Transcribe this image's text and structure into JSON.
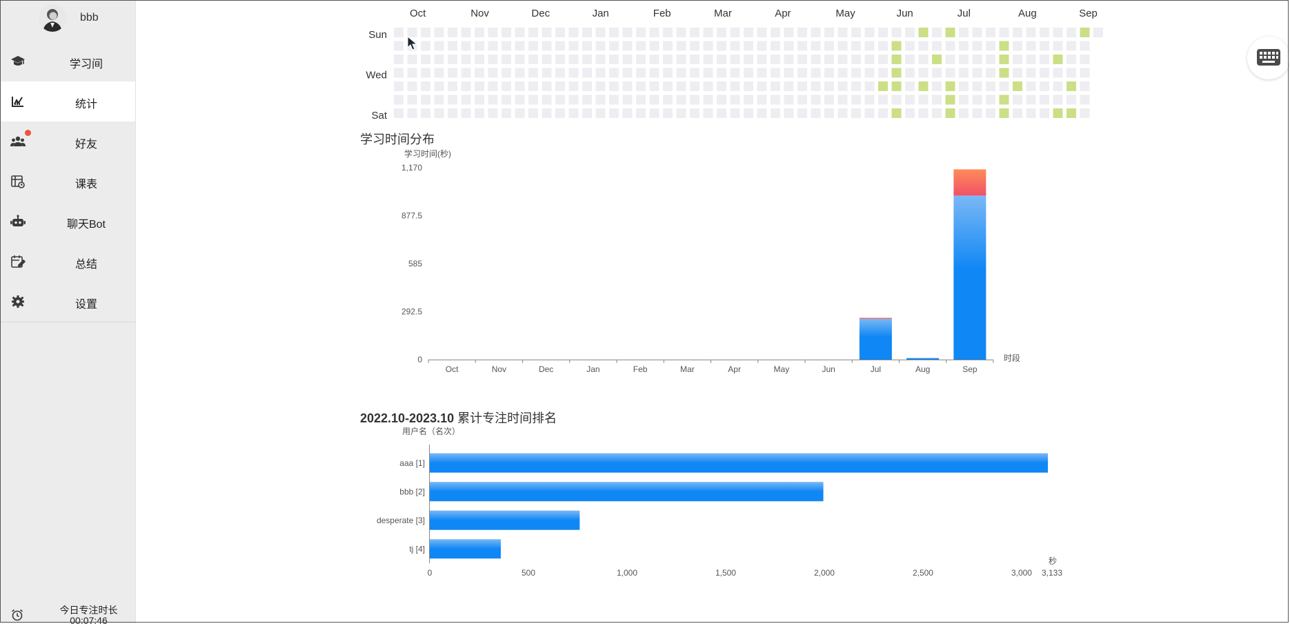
{
  "user": {
    "name": "bbb"
  },
  "nav": [
    {
      "key": "study-room",
      "icon": "graduation-cap-icon",
      "label": "学习间",
      "active": false,
      "badge": false
    },
    {
      "key": "statistics",
      "icon": "chart-icon",
      "label": "统计",
      "active": true,
      "badge": false
    },
    {
      "key": "friends",
      "icon": "users-icon",
      "label": "好友",
      "active": false,
      "badge": true
    },
    {
      "key": "timetable",
      "icon": "timetable-icon",
      "label": "课表",
      "active": false,
      "badge": false
    },
    {
      "key": "chat-bot",
      "icon": "robot-icon",
      "label": "聊天Bot",
      "active": false,
      "badge": false
    },
    {
      "key": "summary",
      "icon": "calendar-edit-icon",
      "label": "总结",
      "active": false,
      "badge": false
    },
    {
      "key": "settings",
      "icon": "gear-icon",
      "label": "设置",
      "active": false,
      "badge": false
    }
  ],
  "today": {
    "label": "今日专注时长",
    "time": "00:07:46",
    "icon": "alarm-clock-icon"
  },
  "keyboard": {
    "icon": "keyboard-icon"
  },
  "colors": {
    "accent": "#0f87f5",
    "accent_light": "#7ab8f5",
    "red_top": "#ff8b5a",
    "red_bottom": "#f05266",
    "heat_active": "#cbdf86",
    "heat_empty": "#eeeef2"
  },
  "heatmap": {
    "months": [
      "Oct",
      "Nov",
      "Dec",
      "Jan",
      "Feb",
      "Mar",
      "Apr",
      "May",
      "Jun",
      "Jul",
      "Aug",
      "Sep"
    ],
    "day_labels": [
      "Sun",
      "Wed",
      "Sat"
    ],
    "weeks": 53,
    "active_cells": [
      {
        "w": 37,
        "d": 1
      },
      {
        "w": 37,
        "d": 2
      },
      {
        "w": 37,
        "d": 3
      },
      {
        "w": 37,
        "d": 4
      },
      {
        "w": 37,
        "d": 6
      },
      {
        "w": 36,
        "d": 4
      },
      {
        "w": 41,
        "d": 0
      },
      {
        "w": 41,
        "d": 4
      },
      {
        "w": 41,
        "d": 5
      },
      {
        "w": 41,
        "d": 6
      },
      {
        "w": 40,
        "d": 2
      },
      {
        "w": 39,
        "d": 0
      },
      {
        "w": 39,
        "d": 4
      },
      {
        "w": 45,
        "d": 1
      },
      {
        "w": 45,
        "d": 2
      },
      {
        "w": 45,
        "d": 3
      },
      {
        "w": 45,
        "d": 5
      },
      {
        "w": 45,
        "d": 6
      },
      {
        "w": 46,
        "d": 4
      },
      {
        "w": 49,
        "d": 2
      },
      {
        "w": 49,
        "d": 6
      },
      {
        "w": 50,
        "d": 4
      },
      {
        "w": 50,
        "d": 6
      },
      {
        "w": 51,
        "d": 0
      }
    ]
  },
  "study_time_chart": {
    "title": "学习时间分布",
    "chart_data": {
      "type": "bar",
      "title": "学习时间分布",
      "ylabel": "学习时间(秒)",
      "xlabel": "时段",
      "categories": [
        "Oct",
        "Nov",
        "Dec",
        "Jan",
        "Feb",
        "Mar",
        "Apr",
        "May",
        "Jun",
        "Jul",
        "Aug",
        "Sep"
      ],
      "y_ticks": [
        "1,170",
        "877.5",
        "585",
        "292.5",
        "0"
      ],
      "ylim": [
        0,
        1170
      ],
      "stacked": true,
      "series": [
        {
          "values": [
            0,
            0,
            0,
            0,
            0,
            0,
            0,
            0,
            0,
            250,
            10,
            1000
          ]
        },
        {
          "values": [
            0,
            0,
            0,
            0,
            0,
            0,
            0,
            0,
            0,
            5,
            0,
            160
          ]
        }
      ],
      "grid": false
    }
  },
  "ranking_chart": {
    "title_bold": "2022.10-2023.10",
    "title_rest": " 累计专注时间排名",
    "chart_data": {
      "type": "bar",
      "orientation": "horizontal",
      "ylabel": "用户名（名次）",
      "xlabel": "秒",
      "categories": [
        "aaa [1]",
        "bbb [2]",
        "desperate [3]",
        "tj [4]"
      ],
      "values": [
        3133,
        1995,
        760,
        360
      ],
      "x_ticks": [
        "0",
        "500",
        "1,000",
        "1,500",
        "2,000",
        "2,500",
        "3,000",
        "3,133"
      ],
      "xlim": [
        0,
        3133
      ],
      "grid": false
    }
  }
}
